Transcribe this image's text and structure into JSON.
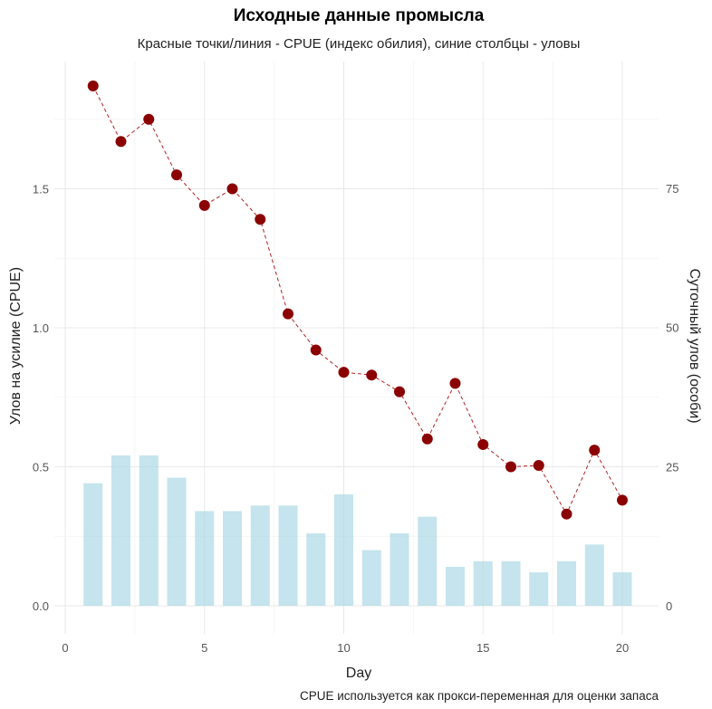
{
  "chart_data": {
    "type": "bar+line",
    "title": "Исходные данные промысла",
    "subtitle": "Красные точки/линия - CPUE (индекс обилия), синие столбцы - уловы",
    "caption": "CPUE используется как прокси-переменная для оценки запаса",
    "xlabel": "Day",
    "ylabel_left": "Улов на усилие (CPUE)",
    "ylabel_right": "Суточный улов (особи)",
    "xlim": [
      0,
      21
    ],
    "ylim_left": [
      0,
      1.9
    ],
    "ylim_right": [
      0,
      95
    ],
    "x_ticks": [
      "0",
      "5",
      "10",
      "15",
      "20"
    ],
    "y_left_ticks": [
      "0.0",
      "0.5",
      "1.0",
      "1.5"
    ],
    "y_right_ticks": [
      "0",
      "25",
      "50",
      "75"
    ],
    "grid": true,
    "days": [
      1,
      2,
      3,
      4,
      5,
      6,
      7,
      8,
      9,
      10,
      11,
      12,
      13,
      14,
      15,
      16,
      17,
      18,
      19,
      20
    ],
    "series": [
      {
        "name": "Catch",
        "axis": "right",
        "type": "bar",
        "color": "#add8e6",
        "values": [
          22,
          27,
          27,
          23,
          17,
          17,
          18,
          18,
          13,
          20,
          10,
          13,
          16,
          7,
          8,
          8,
          6,
          8,
          11,
          6
        ]
      },
      {
        "name": "CPUE",
        "axis": "left",
        "type": "line+points",
        "color": "#8b0000",
        "values": [
          1.87,
          1.67,
          1.75,
          1.55,
          1.44,
          1.5,
          1.39,
          1.05,
          0.92,
          0.84,
          0.83,
          0.77,
          0.6,
          0.8,
          0.58,
          0.5,
          0.505,
          0.33,
          0.56,
          0.38
        ]
      }
    ]
  }
}
